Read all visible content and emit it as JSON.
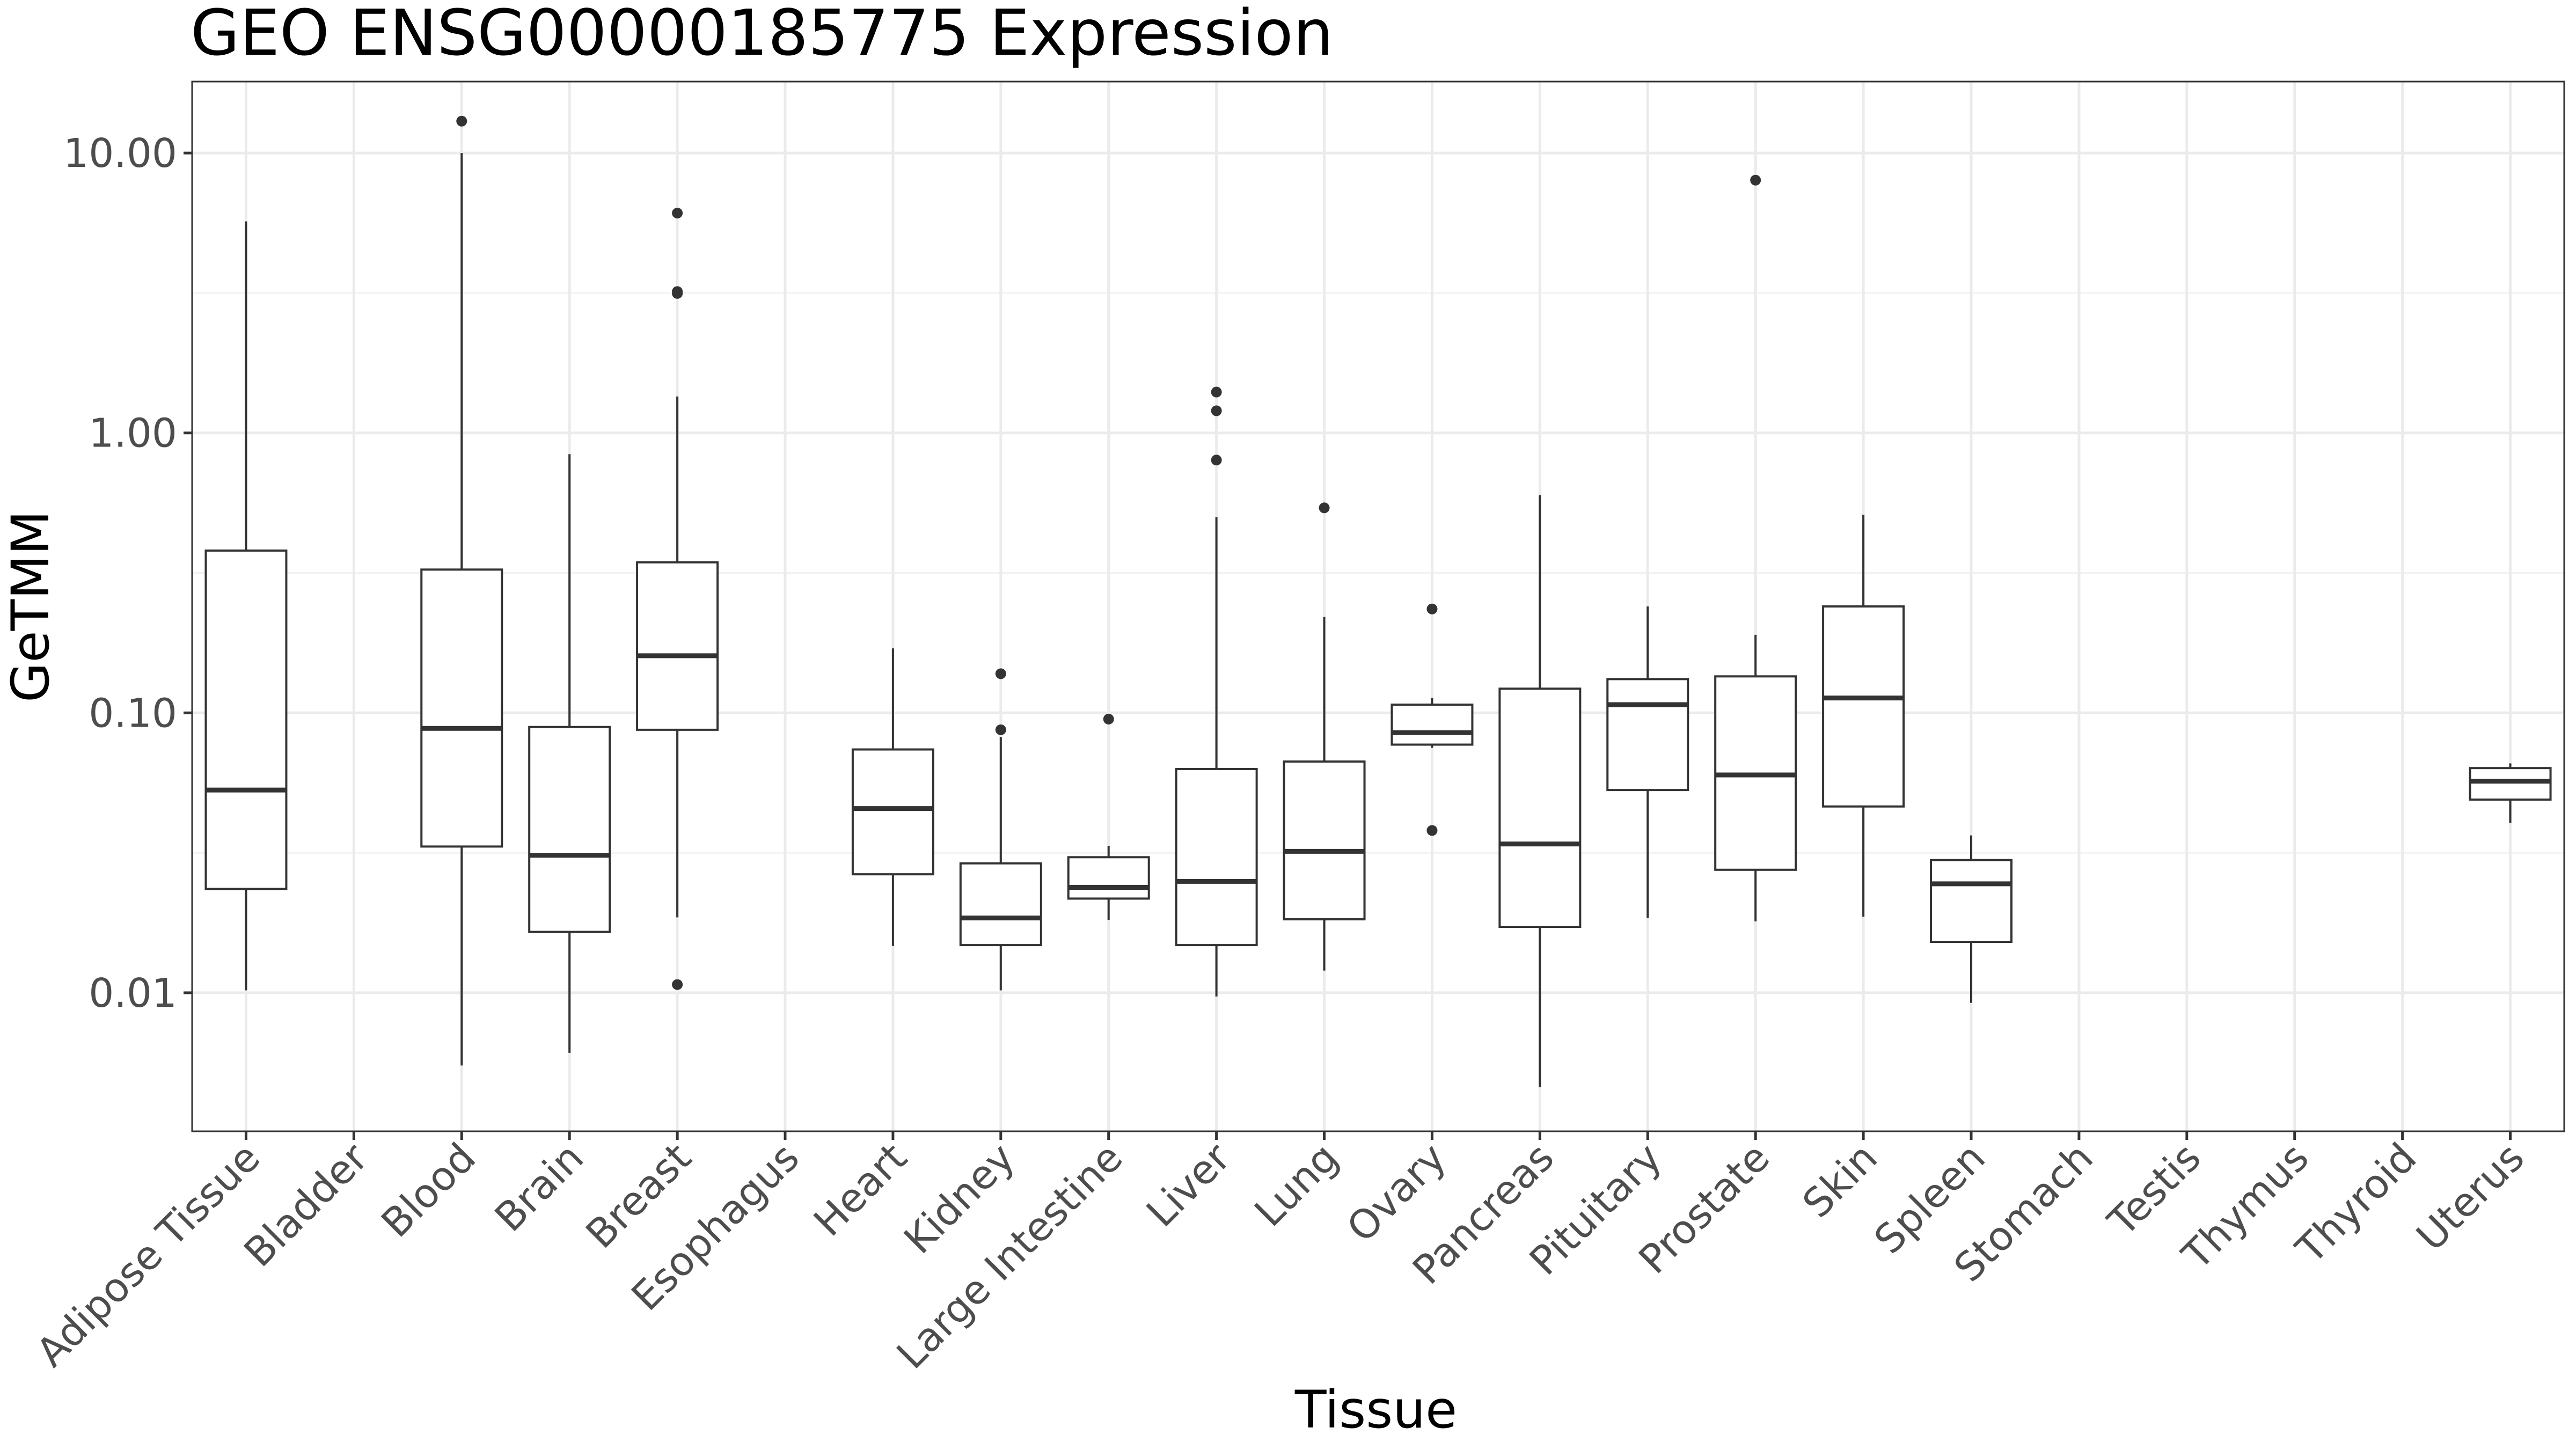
{
  "chart_data": {
    "type": "boxplot",
    "title": "GEO ENSG00000185775 Expression",
    "xlabel": "Tissue",
    "ylabel": "GeTMM",
    "yscale": "log10",
    "ylim": [
      0.0032,
      18
    ],
    "yticks": [
      {
        "value": 0.01,
        "label": "0.01"
      },
      {
        "value": 0.1,
        "label": "0.10"
      },
      {
        "value": 1,
        "label": "1.00"
      },
      {
        "value": 10,
        "label": "10.00"
      }
    ],
    "grid": true,
    "categories": [
      "Adipose Tissue",
      "Bladder",
      "Blood",
      "Brain",
      "Breast",
      "Esophagus",
      "Heart",
      "Kidney",
      "Large Intestine",
      "Liver",
      "Lung",
      "Ovary",
      "Pancreas",
      "Pituitary",
      "Prostate",
      "Skin",
      "Spleen",
      "Stomach",
      "Testis",
      "Thymus",
      "Thyroid",
      "Uterus"
    ],
    "boxes": [
      {
        "category": "Adipose Tissue",
        "min": 0.0102,
        "q1": 0.0235,
        "median": 0.053,
        "q3": 0.38,
        "max": 5.7,
        "outliers": []
      },
      {
        "category": "Bladder",
        "min": null,
        "q1": null,
        "median": null,
        "q3": null,
        "max": null,
        "outliers": []
      },
      {
        "category": "Blood",
        "min": 0.0055,
        "q1": 0.0333,
        "median": 0.088,
        "q3": 0.325,
        "max": 10.0,
        "outliers": [
          13.0
        ]
      },
      {
        "category": "Brain",
        "min": 0.0061,
        "q1": 0.0165,
        "median": 0.031,
        "q3": 0.089,
        "max": 0.84,
        "outliers": []
      },
      {
        "category": "Breast",
        "min": 0.0186,
        "q1": 0.087,
        "median": 0.16,
        "q3": 0.345,
        "max": 1.35,
        "outliers": [
          6.1,
          3.2,
          3.15,
          0.0107
        ]
      },
      {
        "category": "Esophagus",
        "min": null,
        "q1": null,
        "median": null,
        "q3": null,
        "max": null,
        "outliers": []
      },
      {
        "category": "Heart",
        "min": 0.0147,
        "q1": 0.0265,
        "median": 0.0455,
        "q3": 0.074,
        "max": 0.17,
        "outliers": []
      },
      {
        "category": "Kidney",
        "min": 0.0102,
        "q1": 0.0148,
        "median": 0.0185,
        "q3": 0.029,
        "max": 0.082,
        "outliers": [
          0.138,
          0.087
        ]
      },
      {
        "category": "Large Intestine",
        "min": 0.0182,
        "q1": 0.0217,
        "median": 0.0238,
        "q3": 0.0305,
        "max": 0.0335,
        "outliers": [
          0.095
        ]
      },
      {
        "category": "Liver",
        "min": 0.0097,
        "q1": 0.0148,
        "median": 0.025,
        "q3": 0.063,
        "max": 0.5,
        "outliers": [
          1.4,
          1.2,
          0.8
        ]
      },
      {
        "category": "Lung",
        "min": 0.012,
        "q1": 0.0183,
        "median": 0.032,
        "q3": 0.067,
        "max": 0.22,
        "outliers": [
          0.54
        ]
      },
      {
        "category": "Ovary",
        "min": 0.075,
        "q1": 0.077,
        "median": 0.085,
        "q3": 0.107,
        "max": 0.113,
        "outliers": [
          0.235,
          0.038
        ]
      },
      {
        "category": "Pancreas",
        "min": 0.0046,
        "q1": 0.0172,
        "median": 0.034,
        "q3": 0.122,
        "max": 0.6,
        "outliers": []
      },
      {
        "category": "Pituitary",
        "min": 0.0185,
        "q1": 0.053,
        "median": 0.107,
        "q3": 0.132,
        "max": 0.24,
        "outliers": []
      },
      {
        "category": "Prostate",
        "min": 0.018,
        "q1": 0.0275,
        "median": 0.06,
        "q3": 0.135,
        "max": 0.19,
        "outliers": [
          8.0
        ]
      },
      {
        "category": "Skin",
        "min": 0.0187,
        "q1": 0.0463,
        "median": 0.113,
        "q3": 0.24,
        "max": 0.51,
        "outliers": []
      },
      {
        "category": "Spleen",
        "min": 0.0092,
        "q1": 0.0152,
        "median": 0.0245,
        "q3": 0.0298,
        "max": 0.0365,
        "outliers": []
      },
      {
        "category": "Stomach",
        "min": null,
        "q1": null,
        "median": null,
        "q3": null,
        "max": null,
        "outliers": []
      },
      {
        "category": "Testis",
        "min": null,
        "q1": null,
        "median": null,
        "q3": null,
        "max": null,
        "outliers": []
      },
      {
        "category": "Thymus",
        "min": null,
        "q1": null,
        "median": null,
        "q3": null,
        "max": null,
        "outliers": []
      },
      {
        "category": "Thyroid",
        "min": null,
        "q1": null,
        "median": null,
        "q3": null,
        "max": null,
        "outliers": []
      },
      {
        "category": "Uterus",
        "min": 0.0405,
        "q1": 0.049,
        "median": 0.057,
        "q3": 0.0635,
        "max": 0.066,
        "outliers": []
      }
    ]
  }
}
